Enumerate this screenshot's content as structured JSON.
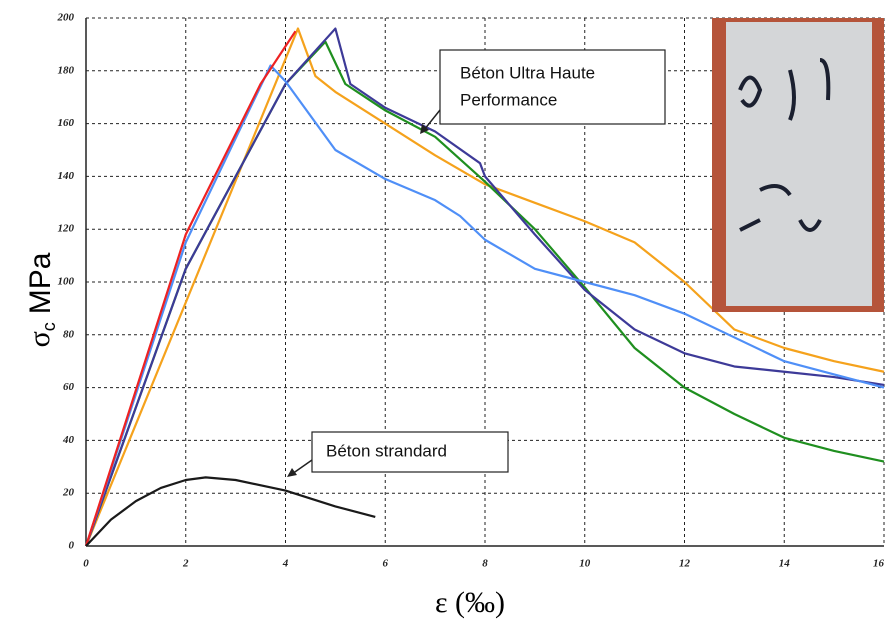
{
  "chart_data": {
    "type": "line",
    "x_label": "ε (‰)",
    "y_label": {
      "symbol": "σ",
      "subscript": "c",
      "unit": "MPa"
    },
    "xlim": [
      0,
      16
    ],
    "xticks": [
      0,
      2,
      4,
      6,
      8,
      10,
      12,
      14,
      16
    ],
    "ylim": [
      0,
      200
    ],
    "yticks": [
      0,
      20,
      40,
      60,
      80,
      100,
      120,
      140,
      160,
      180,
      200
    ],
    "grid": true,
    "annotations": [
      {
        "lines": [
          "Béton Ultra Haute",
          "Performance"
        ]
      },
      {
        "lines": [
          "Béton strandard"
        ]
      }
    ],
    "series": [
      {
        "color": "#f5a21c",
        "x": [
          0,
          4.25,
          4.6,
          5,
          6,
          7,
          8,
          9,
          10,
          11,
          12,
          13,
          14,
          15,
          16
        ],
        "values": [
          0,
          196,
          178,
          172,
          160,
          148,
          137,
          130,
          123,
          115,
          100,
          82,
          75,
          70,
          66
        ]
      },
      {
        "color": "#1f8f1f",
        "x": [
          0,
          2,
          4,
          4.8,
          5.2,
          6,
          7,
          8,
          9,
          10,
          11,
          12,
          13,
          14,
          15,
          16
        ],
        "values": [
          0,
          105,
          175,
          191,
          175,
          165,
          155,
          138,
          120,
          98,
          75,
          60,
          50,
          41,
          36,
          32
        ]
      },
      {
        "color": "#3d3a98",
        "x": [
          0,
          2,
          4,
          5,
          5.3,
          6,
          7,
          7.9,
          8,
          9,
          10,
          11,
          12,
          13,
          14,
          15,
          16
        ],
        "values": [
          0,
          105,
          175,
          196,
          175,
          166,
          157,
          145,
          140,
          118,
          97,
          82,
          73,
          68,
          66,
          64,
          61
        ]
      },
      {
        "color": "#4f8ff7",
        "x": [
          0,
          2,
          3.7,
          4,
          5,
          6,
          7,
          7.5,
          8,
          9,
          10,
          11,
          12,
          13,
          14,
          15,
          16
        ],
        "values": [
          0,
          115,
          182,
          176,
          150,
          139,
          131,
          125,
          116,
          105,
          100,
          95,
          88,
          79,
          70,
          65,
          60
        ]
      },
      {
        "color": "#ee2222",
        "x": [
          0,
          2,
          3.5,
          4.2
        ],
        "values": [
          0,
          118,
          175,
          195
        ]
      },
      {
        "color": "#1a1a1a",
        "x": [
          0,
          0.5,
          1,
          1.5,
          2,
          2.4,
          3,
          4,
          5,
          5.8
        ],
        "values": [
          0,
          10,
          17,
          22,
          25,
          26,
          25,
          21,
          15,
          11
        ]
      }
    ]
  }
}
